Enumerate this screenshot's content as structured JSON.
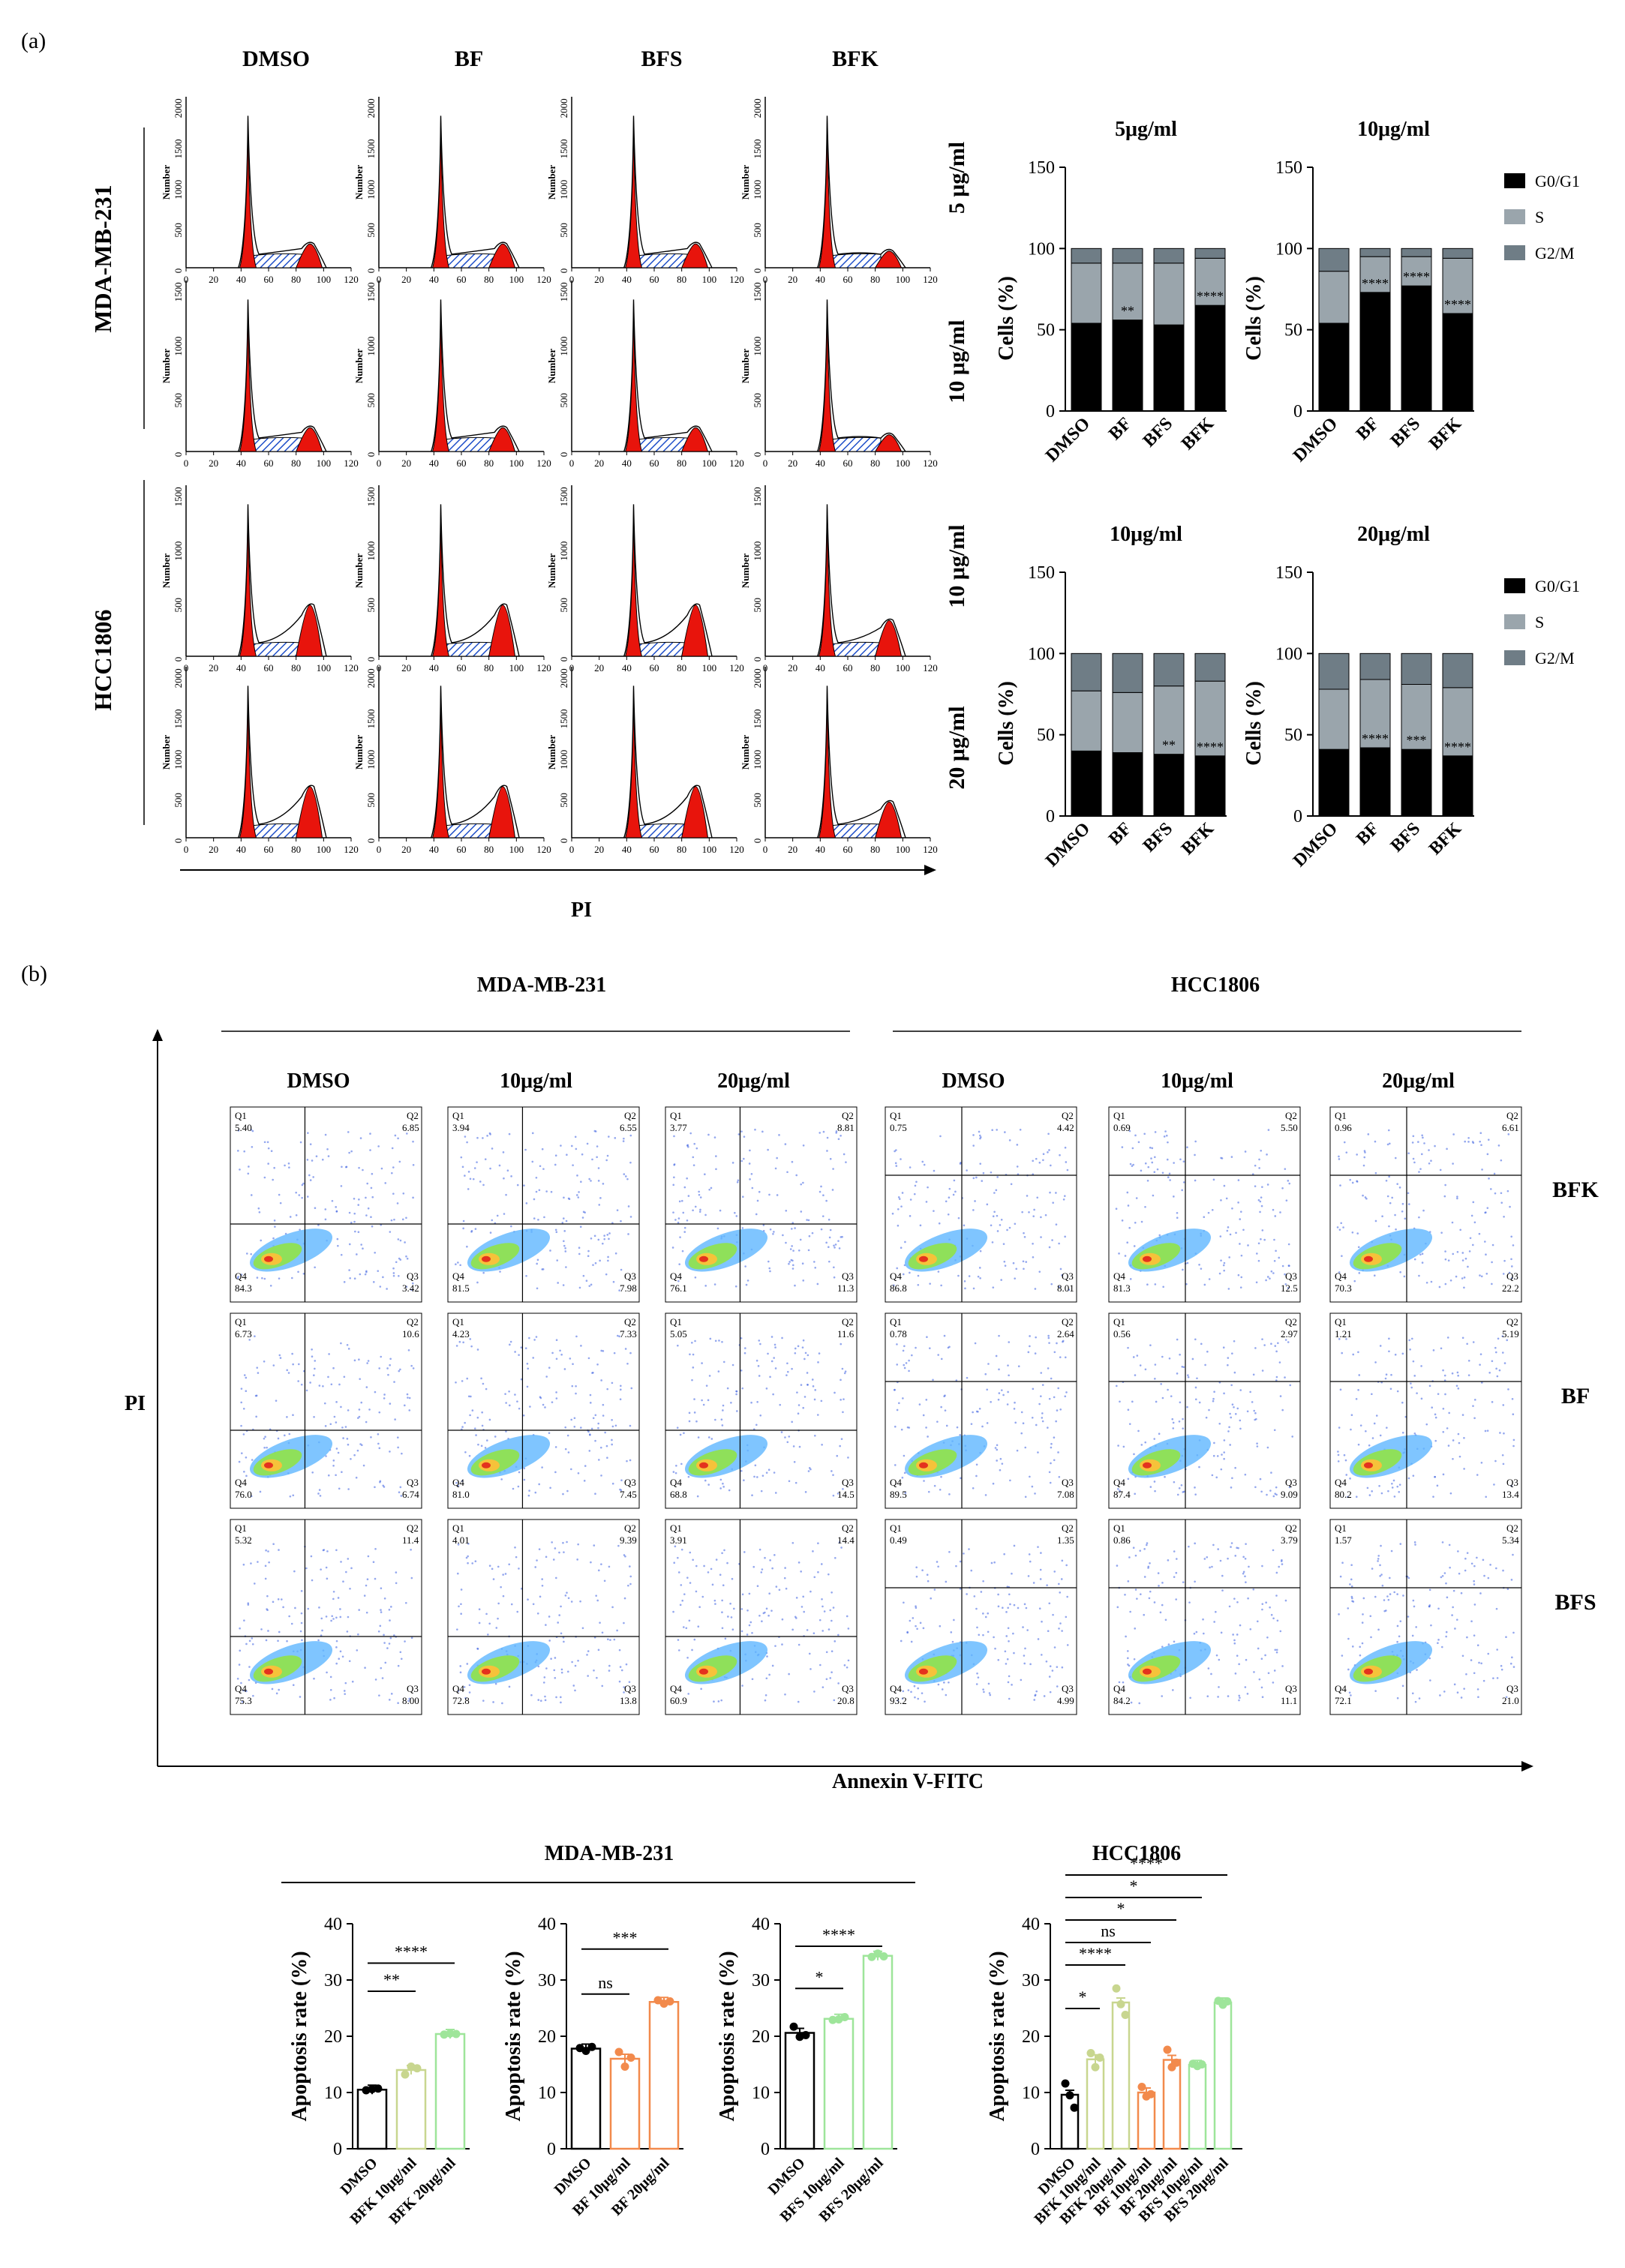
{
  "panel_labels": {
    "a": "(a)",
    "b": "(b)"
  },
  "cell_cycle": {
    "column_labels": [
      "DMSO",
      "BF",
      "BFS",
      "BFK"
    ],
    "row_group_labels": [
      "MDA-MB-231",
      "HCC1806"
    ],
    "row_dose_labels": [
      "5 μg/ml",
      "10 μg/ml",
      "10 μg/ml",
      "20 μg/ml"
    ],
    "y_axis_label": "Number",
    "x_tick_labels": [
      "0",
      "20",
      "40",
      "60",
      "80",
      "100",
      "120"
    ],
    "y_ticks_by_row": [
      [
        "0",
        "500",
        "1000",
        "1500",
        "2000"
      ],
      [
        "0",
        "500",
        "1000",
        "1500"
      ],
      [
        "0",
        "500",
        "1000",
        "1500"
      ],
      [
        "0",
        "500",
        "1000",
        "1500",
        "2000"
      ]
    ],
    "x_axis_title": "PI"
  },
  "flow": {
    "group_titles": [
      "MDA-MB-231",
      "HCC1806"
    ],
    "col_labels": [
      "DMSO",
      "10μg/ml",
      "20μg/ml",
      "DMSO",
      "10μg/ml",
      "20μg/ml"
    ],
    "row_labels": [
      "BFK",
      "BF",
      "BFS"
    ],
    "x_axis_title": "Annexin V-FITC",
    "y_axis_title": "PI",
    "quadrants": [
      [
        [
          "Q1",
          "5.40",
          "Q2",
          "6.85",
          "Q4",
          "84.3",
          "Q3",
          "3.42"
        ],
        [
          "Q1",
          "3.94",
          "Q2",
          "6.55",
          "Q4",
          "81.5",
          "Q3",
          "7.98"
        ],
        [
          "Q1",
          "3.77",
          "Q2",
          "8.81",
          "Q4",
          "76.1",
          "Q3",
          "11.3"
        ],
        [
          "Q1",
          "0.75",
          "Q2",
          "4.42",
          "Q4",
          "86.8",
          "Q3",
          "8.01"
        ],
        [
          "Q1",
          "0.69",
          "Q2",
          "5.50",
          "Q4",
          "81.3",
          "Q3",
          "12.5"
        ],
        [
          "Q1",
          "0.96",
          "Q2",
          "6.61",
          "Q4",
          "70.3",
          "Q3",
          "22.2"
        ]
      ],
      [
        [
          "Q1",
          "6.73",
          "Q2",
          "10.6",
          "Q4",
          "76.0",
          "Q3",
          "6.74"
        ],
        [
          "Q1",
          "4.23",
          "Q2",
          "7.33",
          "Q4",
          "81.0",
          "Q3",
          "7.45"
        ],
        [
          "Q1",
          "5.05",
          "Q2",
          "11.6",
          "Q4",
          "68.8",
          "Q3",
          "14.5"
        ],
        [
          "Q1",
          "0.78",
          "Q2",
          "2.64",
          "Q4",
          "89.5",
          "Q3",
          "7.08"
        ],
        [
          "Q1",
          "0.56",
          "Q2",
          "2.97",
          "Q4",
          "87.4",
          "Q3",
          "9.09"
        ],
        [
          "Q1",
          "1.21",
          "Q2",
          "5.19",
          "Q4",
          "80.2",
          "Q3",
          "13.4"
        ]
      ],
      [
        [
          "Q1",
          "5.32",
          "Q2",
          "11.4",
          "Q4",
          "75.3",
          "Q3",
          "8.00"
        ],
        [
          "Q1",
          "4.01",
          "Q2",
          "9.39",
          "Q4",
          "72.8",
          "Q3",
          "13.8"
        ],
        [
          "Q1",
          "3.91",
          "Q2",
          "14.4",
          "Q4",
          "60.9",
          "Q3",
          "20.8"
        ],
        [
          "Q1",
          "0.49",
          "Q2",
          "1.35",
          "Q4",
          "93.2",
          "Q3",
          "4.99"
        ],
        [
          "Q1",
          "0.86",
          "Q2",
          "3.79",
          "Q4",
          "84.2",
          "Q3",
          "11.1"
        ],
        [
          "Q1",
          "1.57",
          "Q2",
          "5.34",
          "Q4",
          "72.1",
          "Q3",
          "21.0"
        ]
      ]
    ]
  },
  "colors": {
    "g0g1": "#000000",
    "s": "#9aa5ac",
    "g2m": "#6f7d86",
    "peak_red": "#e8140c",
    "hatch_blue": "#1f4fc9",
    "black": "#000000",
    "light_green": "#c8d68f",
    "orange": "#f28a4c",
    "green": "#9ee59a"
  },
  "chart_data": [
    {
      "type": "bar",
      "stacked": true,
      "title": "5μg/ml",
      "ylabel": "Cells (%)",
      "ylim": [
        0,
        150
      ],
      "y_ticks": [
        "0",
        "50",
        "100",
        "150"
      ],
      "categories": [
        "DMSO",
        "BF",
        "BFS",
        "BFK"
      ],
      "series": [
        {
          "name": "G0/G1",
          "values": [
            54,
            56,
            53,
            65
          ]
        },
        {
          "name": "S",
          "values": [
            37,
            35,
            38,
            29
          ]
        },
        {
          "name": "G2/M",
          "values": [
            9,
            9,
            9,
            6
          ]
        }
      ],
      "significance": [
        "",
        "**",
        "",
        "****"
      ]
    },
    {
      "type": "bar",
      "stacked": true,
      "title": "10μg/ml",
      "ylabel": "Cells (%)",
      "ylim": [
        0,
        150
      ],
      "y_ticks": [
        "0",
        "50",
        "100",
        "150"
      ],
      "categories": [
        "DMSO",
        "BF",
        "BFS",
        "BFK"
      ],
      "series": [
        {
          "name": "G0/G1",
          "values": [
            54,
            73,
            77,
            60
          ]
        },
        {
          "name": "S",
          "values": [
            32,
            22,
            18,
            34
          ]
        },
        {
          "name": "G2/M",
          "values": [
            14,
            5,
            5,
            6
          ]
        }
      ],
      "legend": [
        "G0/G1",
        "S",
        "G2/M"
      ],
      "legend_position": "right",
      "significance": [
        "",
        "****",
        "****",
        "****"
      ]
    },
    {
      "type": "bar",
      "stacked": true,
      "title": "10μg/ml",
      "ylabel": "Cells (%)",
      "ylim": [
        0,
        150
      ],
      "y_ticks": [
        "0",
        "50",
        "100",
        "150"
      ],
      "categories": [
        "DMSO",
        "BF",
        "BFS",
        "BFK"
      ],
      "series": [
        {
          "name": "G0/G1",
          "values": [
            40,
            39,
            38,
            37
          ]
        },
        {
          "name": "S",
          "values": [
            37,
            37,
            42,
            46
          ]
        },
        {
          "name": "G2/M",
          "values": [
            23,
            24,
            20,
            17
          ]
        }
      ],
      "significance": [
        "",
        "",
        "**",
        "****"
      ]
    },
    {
      "type": "bar",
      "stacked": true,
      "title": "20μg/ml",
      "ylabel": "Cells (%)",
      "ylim": [
        0,
        150
      ],
      "y_ticks": [
        "0",
        "50",
        "100",
        "150"
      ],
      "categories": [
        "DMSO",
        "BF",
        "BFS",
        "BFK"
      ],
      "series": [
        {
          "name": "G0/G1",
          "values": [
            41,
            42,
            41,
            37
          ]
        },
        {
          "name": "S",
          "values": [
            37,
            42,
            40,
            42
          ]
        },
        {
          "name": "G2/M",
          "values": [
            22,
            16,
            19,
            21
          ]
        }
      ],
      "legend": [
        "G0/G1",
        "S",
        "G2/M"
      ],
      "legend_position": "right",
      "significance": [
        "",
        "****",
        "***",
        "****"
      ]
    },
    {
      "type": "bar",
      "group": "MDA-MB-231",
      "ylabel": "Apoptosis rate (%)",
      "ylim": [
        0,
        40
      ],
      "y_ticks": [
        "0",
        "10",
        "20",
        "30",
        "40"
      ],
      "categories": [
        "DMSO",
        "BFK 10μg/ml",
        "BFK 20μg/ml"
      ],
      "values": [
        10.5,
        14.0,
        20.4
      ],
      "points": [
        [
          10.4,
          10.6,
          10.7
        ],
        [
          13.2,
          14.6,
          14.3
        ],
        [
          20.3,
          20.5,
          20.4
        ]
      ],
      "colors": [
        "#000000",
        "#c8d68f",
        "#9ee59a"
      ],
      "comparisons": [
        {
          "from": 0,
          "to": 1,
          "label": "**"
        },
        {
          "from": 0,
          "to": 2,
          "label": "****"
        }
      ]
    },
    {
      "type": "bar",
      "group": "MDA-MB-231",
      "ylabel": "Apoptosis rate (%)",
      "ylim": [
        0,
        40
      ],
      "y_ticks": [
        "0",
        "10",
        "20",
        "30",
        "40"
      ],
      "categories": [
        "DMSO",
        "BF 10μg/ml",
        "BF 20μg/ml"
      ],
      "values": [
        17.8,
        16.0,
        26.1
      ],
      "points": [
        [
          17.9,
          17.4,
          18.1
        ],
        [
          17.2,
          14.6,
          16.2
        ],
        [
          26.4,
          25.8,
          26.2
        ]
      ],
      "colors": [
        "#000000",
        "#f28a4c",
        "#f28a4c"
      ],
      "comparisons": [
        {
          "from": 0,
          "to": 1,
          "label": "ns"
        },
        {
          "from": 0,
          "to": 2,
          "label": "***"
        }
      ]
    },
    {
      "type": "bar",
      "group": "MDA-MB-231",
      "ylabel": "Apoptosis rate (%)",
      "ylim": [
        0,
        40
      ],
      "y_ticks": [
        "0",
        "10",
        "20",
        "30",
        "40"
      ],
      "categories": [
        "DMSO",
        "BFS 10μg/ml",
        "BFS 20μg/ml"
      ],
      "values": [
        20.6,
        23.1,
        34.3
      ],
      "points": [
        [
          21.7,
          19.9,
          20.2
        ],
        [
          22.9,
          23.0,
          23.4
        ],
        [
          34.1,
          34.7,
          34.2
        ]
      ],
      "colors": [
        "#000000",
        "#9ee59a",
        "#9ee59a"
      ],
      "comparisons": [
        {
          "from": 0,
          "to": 1,
          "label": "*"
        },
        {
          "from": 0,
          "to": 2,
          "label": "****"
        }
      ]
    },
    {
      "type": "bar",
      "group": "HCC1806",
      "ylabel": "Apoptosis rate (%)",
      "ylim": [
        0,
        40
      ],
      "y_ticks": [
        "0",
        "10",
        "20",
        "30",
        "40"
      ],
      "categories": [
        "DMSO",
        "BFK 10μg/ml",
        "BFK 20μg/ml",
        "BF 10μg/ml",
        "BF 20μg/ml",
        "BFS 10μg/ml",
        "BFS 20μg/ml"
      ],
      "values": [
        9.6,
        15.9,
        26.0,
        10.0,
        15.8,
        14.9,
        26.0
      ],
      "points": [
        [
          11.6,
          9.5,
          7.3
        ],
        [
          17.0,
          14.5,
          16.2
        ],
        [
          28.5,
          25.7,
          23.8
        ],
        [
          11.0,
          9.3,
          9.7
        ],
        [
          17.6,
          14.5,
          15.3
        ],
        [
          15.1,
          14.7,
          15.0
        ],
        [
          26.3,
          25.6,
          26.2
        ]
      ],
      "colors": [
        "#000000",
        "#c8d68f",
        "#c8d68f",
        "#f28a4c",
        "#f28a4c",
        "#9ee59a",
        "#9ee59a"
      ],
      "comparisons": [
        {
          "from": 0,
          "to": 1,
          "label": "*"
        },
        {
          "from": 0,
          "to": 2,
          "label": "****"
        },
        {
          "from": 0,
          "to": 3,
          "label": "ns"
        },
        {
          "from": 0,
          "to": 4,
          "label": "*"
        },
        {
          "from": 0,
          "to": 5,
          "label": "*"
        },
        {
          "from": 0,
          "to": 6,
          "label": "****"
        }
      ]
    }
  ]
}
